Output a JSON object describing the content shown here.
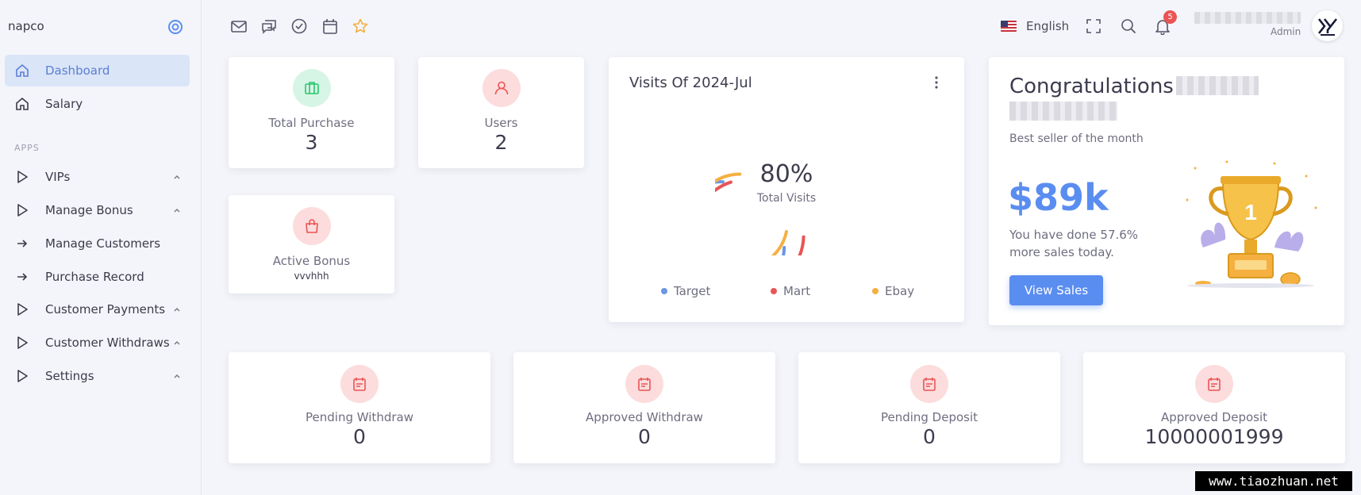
{
  "sidebar": {
    "brand": "napco",
    "section_label": "APPS",
    "items": [
      {
        "label": "Dashboard"
      },
      {
        "label": "Salary"
      },
      {
        "label": "VIPs"
      },
      {
        "label": "Manage Bonus"
      },
      {
        "label": "Manage Customers"
      },
      {
        "label": "Purchase Record"
      },
      {
        "label": "Customer Payments"
      },
      {
        "label": "Customer Withdraws"
      },
      {
        "label": "Settings"
      }
    ]
  },
  "topbar": {
    "icons": [
      "mail-icon",
      "chat-icon",
      "check-circle-icon",
      "calendar-icon",
      "star-icon"
    ],
    "language": "English",
    "notification_count": "5",
    "user_role": "Admin"
  },
  "stats": {
    "total_purchase": {
      "label": "Total Purchase",
      "value": "3"
    },
    "users": {
      "label": "Users",
      "value": "2"
    },
    "active_bonus": {
      "label": "Active Bonus",
      "value": "vvvhhh"
    }
  },
  "visits": {
    "title": "Visits Of 2024-Jul",
    "percent": "80%",
    "subtitle": "Total Visits",
    "legend": [
      "Target",
      "Mart",
      "Ebay"
    ]
  },
  "chart_data": {
    "type": "radialBar",
    "title": "Visits Of 2024-Jul",
    "center_value": "80%",
    "center_label": "Total Visits",
    "series": [
      {
        "name": "Target",
        "color": "#6b96e6"
      },
      {
        "name": "Mart",
        "color": "#ea5455"
      },
      {
        "name": "Ebay",
        "color": "#f5b041"
      }
    ]
  },
  "congrats": {
    "title": "Congratulations",
    "subtitle": "Best seller of the month",
    "amount": "$89k",
    "description": "You have done 57.6% more sales today.",
    "button": "View Sales",
    "trophy_number": "1"
  },
  "bottom_stats": [
    {
      "label": "Pending Withdraw",
      "value": "0"
    },
    {
      "label": "Approved Withdraw",
      "value": "0"
    },
    {
      "label": "Pending Deposit",
      "value": "0"
    },
    {
      "label": "Approved Deposit",
      "value": "10000001999"
    }
  ],
  "watermark": "www.tiaozhuan.net",
  "colors": {
    "accent": "#5a8df0",
    "green": "#28c76f",
    "red": "#ea5455",
    "orange": "#f5b041"
  }
}
